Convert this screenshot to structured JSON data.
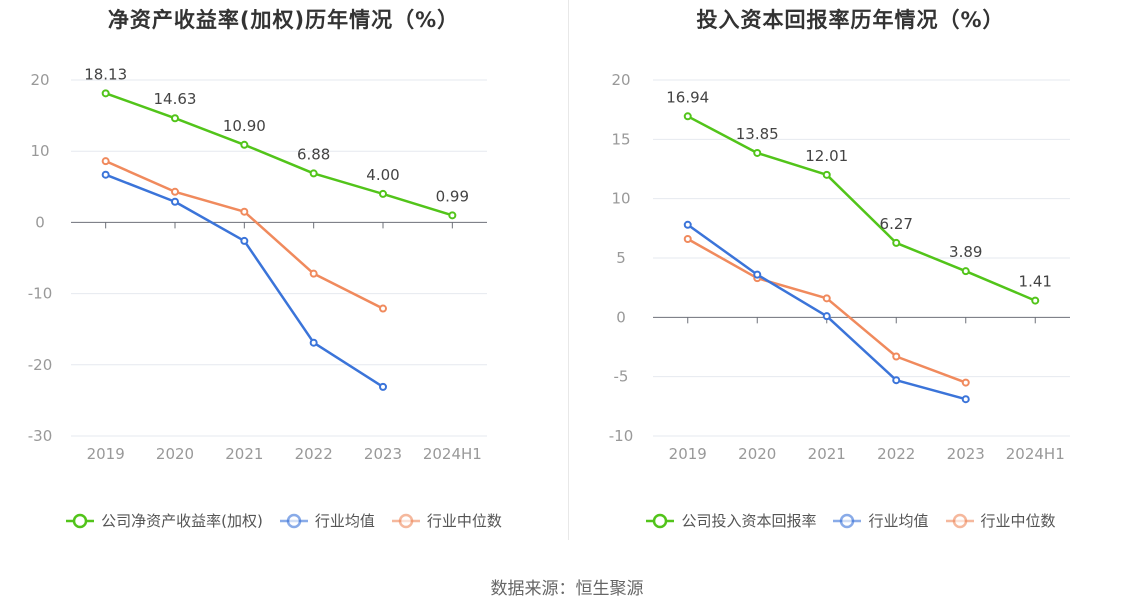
{
  "source": "数据来源：恒生聚源",
  "colors": {
    "company": "#52c41a",
    "industry_avg": "#3b74d9",
    "industry_median": "#f08a5d"
  },
  "chart_data": [
    {
      "type": "line",
      "title": "净资产收益率(加权)历年情况（%）",
      "categories": [
        "2019",
        "2020",
        "2021",
        "2022",
        "2023",
        "2024H1"
      ],
      "ylim": [
        -30,
        20
      ],
      "yticks": [
        20,
        10,
        0,
        -10,
        -20,
        -30
      ],
      "grid": true,
      "legend_position": "bottom",
      "series": [
        {
          "name": "公司净资产收益率(加权)",
          "color": "#52c41a",
          "values": [
            18.13,
            14.63,
            10.9,
            6.88,
            4.0,
            0.99
          ],
          "labels": [
            "18.13",
            "14.63",
            "10.90",
            "6.88",
            "4.00",
            "0.99"
          ]
        },
        {
          "name": "行业均值",
          "color": "#3b74d9",
          "values": [
            6.7,
            2.9,
            -2.6,
            -16.9,
            -23.1,
            null
          ]
        },
        {
          "name": "行业中位数",
          "color": "#f08a5d",
          "values": [
            8.6,
            4.3,
            1.5,
            -7.2,
            -12.1,
            null
          ]
        }
      ]
    },
    {
      "type": "line",
      "title": "投入资本回报率历年情况（%）",
      "categories": [
        "2019",
        "2020",
        "2021",
        "2022",
        "2023",
        "2024H1"
      ],
      "ylim": [
        -10,
        20
      ],
      "yticks": [
        20,
        15,
        10,
        5,
        0,
        -5,
        -10
      ],
      "grid": true,
      "legend_position": "bottom",
      "series": [
        {
          "name": "公司投入资本回报率",
          "color": "#52c41a",
          "values": [
            16.94,
            13.85,
            12.01,
            6.27,
            3.89,
            1.41
          ],
          "labels": [
            "16.94",
            "13.85",
            "12.01",
            "6.27",
            "3.89",
            "1.41"
          ]
        },
        {
          "name": "行业均值",
          "color": "#3b74d9",
          "values": [
            7.8,
            3.6,
            0.1,
            -5.3,
            -6.9,
            null
          ]
        },
        {
          "name": "行业中位数",
          "color": "#f08a5d",
          "values": [
            6.6,
            3.3,
            1.6,
            -3.3,
            -5.5,
            null
          ]
        }
      ]
    }
  ]
}
